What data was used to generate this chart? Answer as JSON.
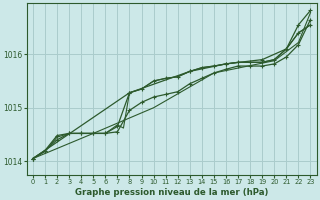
{
  "title": "Graphe pression niveau de la mer (hPa)",
  "background_color": "#cce8e8",
  "line_color": "#2d5a2d",
  "grid_color": "#aacccc",
  "xlim": [
    -0.5,
    23.5
  ],
  "ylim": [
    1013.75,
    1016.95
  ],
  "yticks": [
    1014,
    1015,
    1016
  ],
  "xticks": [
    0,
    1,
    2,
    3,
    4,
    5,
    6,
    7,
    8,
    9,
    10,
    11,
    12,
    13,
    14,
    15,
    16,
    17,
    18,
    19,
    20,
    21,
    22,
    23
  ],
  "series": [
    {
      "x": [
        0,
        1,
        2,
        3,
        4,
        5,
        6,
        7,
        8,
        9,
        10,
        11,
        12,
        13,
        14,
        15,
        16,
        17,
        18,
        19,
        20,
        21,
        22,
        23
      ],
      "y": [
        1014.05,
        1014.2,
        1014.4,
        1014.52,
        1014.52,
        1014.52,
        1014.52,
        1014.55,
        1014.95,
        1015.1,
        1015.2,
        1015.25,
        1015.3,
        1015.45,
        1015.55,
        1015.65,
        1015.72,
        1015.78,
        1015.78,
        1015.78,
        1015.82,
        1015.95,
        1016.18,
        1016.65
      ],
      "marker": true,
      "lw": 0.9
    },
    {
      "x": [
        0,
        1,
        2,
        3,
        4,
        5,
        6,
        7,
        8,
        9,
        10,
        11,
        12,
        13,
        14,
        15,
        16,
        17,
        18,
        19,
        20,
        21,
        22,
        23
      ],
      "y": [
        1014.05,
        1014.2,
        1014.48,
        1014.52,
        1014.52,
        1014.52,
        1014.52,
        1014.65,
        1015.28,
        1015.35,
        1015.5,
        1015.55,
        1015.58,
        1015.68,
        1015.75,
        1015.78,
        1015.82,
        1015.85,
        1015.85,
        1015.85,
        1015.9,
        1016.1,
        1016.4,
        1016.55
      ],
      "marker": true,
      "lw": 0.9
    },
    {
      "x": [
        0,
        1,
        2,
        3,
        4,
        5,
        6,
        7,
        7.5,
        8,
        9,
        10,
        11,
        12,
        13,
        14,
        15,
        16,
        17,
        18,
        19,
        20,
        21,
        22,
        23
      ],
      "y": [
        1014.05,
        1014.18,
        1014.45,
        1014.52,
        1014.52,
        1014.52,
        1014.52,
        1014.68,
        1014.62,
        1015.28,
        1015.35,
        1015.5,
        1015.55,
        1015.58,
        1015.68,
        1015.75,
        1015.78,
        1015.82,
        1015.85,
        1015.85,
        1015.85,
        1015.9,
        1016.1,
        1016.4,
        1016.55
      ],
      "marker": false,
      "lw": 0.8
    },
    {
      "x": [
        0,
        5,
        10,
        15,
        20,
        22,
        23
      ],
      "y": [
        1014.05,
        1014.52,
        1015.0,
        1015.65,
        1015.88,
        1016.22,
        1016.78
      ],
      "marker": false,
      "lw": 0.8
    },
    {
      "x": [
        0,
        8,
        13,
        16,
        19,
        21,
        22,
        23
      ],
      "y": [
        1014.05,
        1015.28,
        1015.68,
        1015.82,
        1015.9,
        1016.1,
        1016.55,
        1016.82
      ],
      "marker": true,
      "lw": 0.9
    }
  ]
}
